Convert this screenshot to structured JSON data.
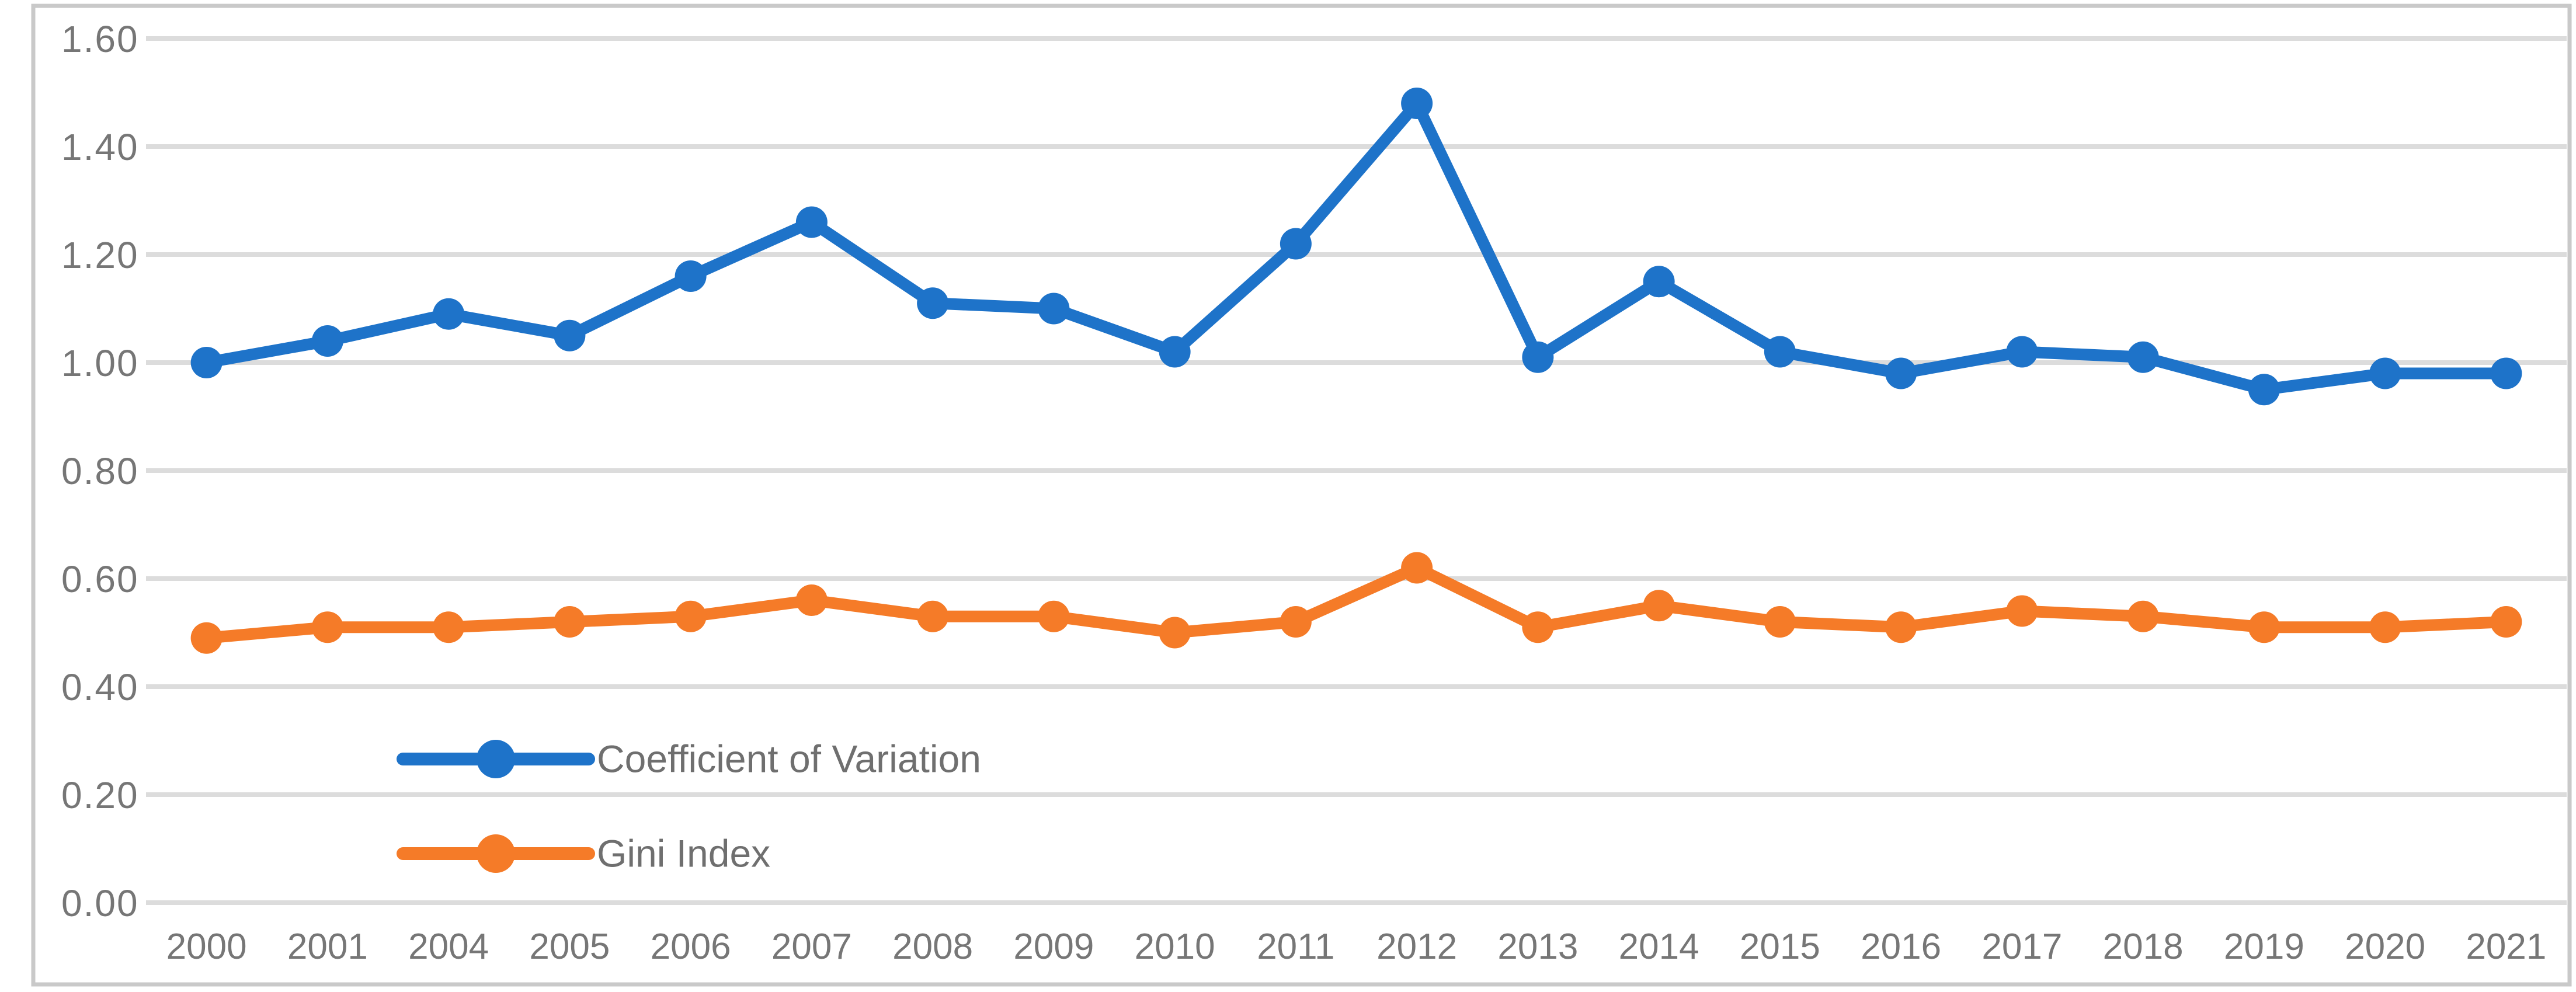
{
  "figure": {
    "background_color": "#ffffff",
    "border_color": "#c9c9c9",
    "gridline_color": "#dcdcdc",
    "axis_text_color": "#767676",
    "legend_text_color": "#6f6f6f"
  },
  "y_axis": {
    "tick_labels": [
      "0.00",
      "0.20",
      "0.40",
      "0.60",
      "0.80",
      "1.00",
      "1.20",
      "1.40",
      "1.60"
    ],
    "min": 0,
    "max": 1.6,
    "step": 0.2
  },
  "x_axis": {
    "tick_labels": [
      "2000",
      "2001",
      "2004",
      "2005",
      "2006",
      "2007",
      "2008",
      "2009",
      "2010",
      "2011",
      "2012",
      "2013",
      "2014",
      "2015",
      "2016",
      "2017",
      "2018",
      "2019",
      "2020",
      "2021"
    ]
  },
  "legend": {
    "items": [
      {
        "label": "Coefficient of Variation",
        "color": "#1e73c9"
      },
      {
        "label": "Gini Index",
        "color": "#f57b28"
      }
    ]
  },
  "chart_data": {
    "type": "line",
    "title": "",
    "xlabel": "",
    "ylabel": "",
    "ylim": [
      0,
      1.6
    ],
    "y_tick_step": 0.2,
    "grid": true,
    "legend_position": "inside-lower-left",
    "categories": [
      "2000",
      "2001",
      "2004",
      "2005",
      "2006",
      "2007",
      "2008",
      "2009",
      "2010",
      "2011",
      "2012",
      "2013",
      "2014",
      "2015",
      "2016",
      "2017",
      "2018",
      "2019",
      "2020",
      "2021"
    ],
    "series": [
      {
        "name": "Coefficient of Variation",
        "color": "#1e73c9",
        "values": [
          1.0,
          1.04,
          1.09,
          1.05,
          1.16,
          1.26,
          1.11,
          1.1,
          1.02,
          1.22,
          1.48,
          1.01,
          1.15,
          1.02,
          0.98,
          1.02,
          1.01,
          0.95,
          0.98,
          0.98
        ]
      },
      {
        "name": "Gini Index",
        "color": "#f57b28",
        "values": [
          0.49,
          0.51,
          0.51,
          0.52,
          0.53,
          0.56,
          0.53,
          0.53,
          0.5,
          0.52,
          0.62,
          0.51,
          0.55,
          0.52,
          0.51,
          0.54,
          0.53,
          0.51,
          0.51,
          0.52
        ]
      }
    ]
  }
}
